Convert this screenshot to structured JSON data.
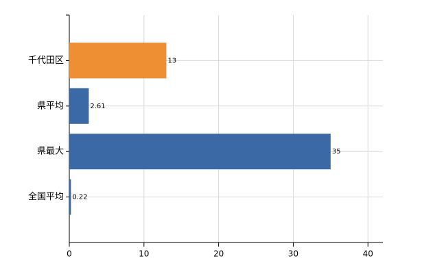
{
  "chart_data": {
    "type": "bar",
    "orientation": "horizontal",
    "categories": [
      "千代田区",
      "県平均",
      "県最大",
      "全国平均"
    ],
    "values": [
      13,
      2.61,
      35,
      0.22
    ],
    "colors": [
      "#ee8f33",
      "#3a69a6",
      "#3a69a6",
      "#3a69a6"
    ],
    "xlim": [
      0,
      42
    ],
    "xticks": [
      0,
      10,
      20,
      30,
      40
    ],
    "grid": true
  }
}
